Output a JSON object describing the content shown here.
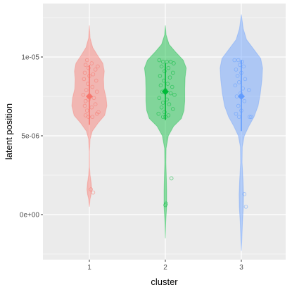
{
  "chart_data": {
    "type": "violin",
    "xlabel": "cluster",
    "ylabel": "latent position",
    "categories": [
      "1",
      "2",
      "3"
    ],
    "ylim": [
      -2.6e-06,
      1.27e-05
    ],
    "yticks": [
      0,
      5e-06,
      1e-05
    ],
    "ytick_labels": [
      "0e+00",
      "5e-06",
      "1e-05"
    ],
    "grid": true,
    "legend": "none",
    "colors": [
      "#F8766D",
      "#00BA38",
      "#619CFF"
    ],
    "panel_background": "#EBEBEB",
    "series": [
      {
        "category": "1",
        "mean": 7.5e-06,
        "range": [
          5.7e-06,
          9.5e-06
        ],
        "points": [
          [
            0.97,
            9.8e-06
          ],
          [
            1.03,
            9.6e-06
          ],
          [
            0.95,
            9.5e-06
          ],
          [
            1.11,
            9.4e-06
          ],
          [
            0.99,
            9.3e-06
          ],
          [
            1.08,
            9.2e-06
          ],
          [
            0.94,
            9e-06
          ],
          [
            1.05,
            8.9e-06
          ],
          [
            1.0,
            8.8e-06
          ],
          [
            0.93,
            8.6e-06
          ],
          [
            1.09,
            8.5e-06
          ],
          [
            0.98,
            8.3e-06
          ],
          [
            1.04,
            8.1e-06
          ],
          [
            0.96,
            7.9e-06
          ],
          [
            1.1,
            7.8e-06
          ],
          [
            0.92,
            7.6e-06
          ],
          [
            1.06,
            7.4e-06
          ],
          [
            0.99,
            7.3e-06
          ],
          [
            0.95,
            7.2e-06
          ],
          [
            1.08,
            7e-06
          ],
          [
            0.94,
            6.9e-06
          ],
          [
            1.03,
            6.8e-06
          ],
          [
            0.97,
            6.6e-06
          ],
          [
            1.12,
            6.5e-06
          ],
          [
            1.1,
            6.4e-06
          ],
          [
            0.95,
            6.3e-06
          ],
          [
            0.99,
            6.2e-06
          ],
          [
            1.04,
            6.2e-06
          ],
          [
            1.02,
            1.6e-06
          ],
          [
            1.05,
            1.4e-06
          ]
        ]
      },
      {
        "category": "2",
        "mean": 7.8e-06,
        "range": [
          6e-06,
          9.6e-06
        ],
        "points": [
          [
            0.92,
            9.8e-06
          ],
          [
            0.97,
            9.7e-06
          ],
          [
            1.02,
            9.7e-06
          ],
          [
            1.07,
            9.7e-06
          ],
          [
            1.11,
            9.6e-06
          ],
          [
            0.95,
            9.4e-06
          ],
          [
            1.04,
            9.3e-06
          ],
          [
            0.99,
            9.1e-06
          ],
          [
            1.1,
            9e-06
          ],
          [
            0.93,
            8.8e-06
          ],
          [
            1.06,
            8.7e-06
          ],
          [
            0.98,
            8.5e-06
          ],
          [
            1.03,
            8.3e-06
          ],
          [
            0.94,
            8.2e-06
          ],
          [
            1.09,
            8.1e-06
          ],
          [
            1.0,
            7.9e-06
          ],
          [
            0.96,
            7.8e-06
          ],
          [
            1.07,
            7.7e-06
          ],
          [
            1.12,
            7.6e-06
          ],
          [
            0.92,
            7.4e-06
          ],
          [
            1.02,
            7.3e-06
          ],
          [
            0.97,
            7.1e-06
          ],
          [
            1.05,
            7e-06
          ],
          [
            0.95,
            6.8e-06
          ],
          [
            1.1,
            6.7e-06
          ],
          [
            0.99,
            6.5e-06
          ],
          [
            0.91,
            6.4e-06
          ],
          [
            1.04,
            6.3e-06
          ],
          [
            0.97,
            6.2e-06
          ],
          [
            1.0,
            6.2e-06
          ],
          [
            1.08,
            2.3e-06
          ],
          [
            1.01,
            7e-07
          ],
          [
            1.0,
            6e-07
          ]
        ]
      },
      {
        "category": "3",
        "mean": 7.5e-06,
        "range": [
          5.3e-06,
          9.8e-06
        ],
        "points": [
          [
            0.91,
            9.8e-06
          ],
          [
            0.96,
            9.8e-06
          ],
          [
            1.01,
            9.7e-06
          ],
          [
            0.98,
            9.5e-06
          ],
          [
            1.03,
            9.4e-06
          ],
          [
            0.93,
            9.2e-06
          ],
          [
            1.0,
            9e-06
          ],
          [
            0.95,
            8.8e-06
          ],
          [
            1.05,
            8.6e-06
          ],
          [
            0.97,
            8.4e-06
          ],
          [
            0.92,
            8.2e-06
          ],
          [
            1.02,
            8e-06
          ],
          [
            1.1,
            7.9e-06
          ],
          [
            0.99,
            7.7e-06
          ],
          [
            0.94,
            7.5e-06
          ],
          [
            1.04,
            7.2e-06
          ],
          [
            0.96,
            6.9e-06
          ],
          [
            1.0,
            6.6e-06
          ],
          [
            0.93,
            6.4e-06
          ],
          [
            0.97,
            6.2e-06
          ],
          [
            1.11,
            6.2e-06
          ],
          [
            1.13,
            6.2e-06
          ],
          [
            1.04,
            1.3e-06
          ],
          [
            1.06,
            5e-07
          ]
        ]
      }
    ],
    "density": [
      {
        "category": "1",
        "ymin": 5e-07,
        "ymax": 1.2e-05,
        "profile": [
          [
            5e-07,
            0.0
          ],
          [
            1e-06,
            0.02
          ],
          [
            1.3e-06,
            0.05
          ],
          [
            1.6e-06,
            0.065
          ],
          [
            2e-06,
            0.05
          ],
          [
            2.5e-06,
            0.02
          ],
          [
            3e-06,
            0.005
          ],
          [
            4e-06,
            0.004
          ],
          [
            4.8e-06,
            0.02
          ],
          [
            5.3e-06,
            0.08
          ],
          [
            5.8e-06,
            0.23
          ],
          [
            6.3e-06,
            0.41
          ],
          [
            6.9e-06,
            0.47
          ],
          [
            7.4e-06,
            0.45
          ],
          [
            8e-06,
            0.39
          ],
          [
            8.6e-06,
            0.38
          ],
          [
            9.1e-06,
            0.4
          ],
          [
            9.6e-06,
            0.36
          ],
          [
            1.01e-05,
            0.22
          ],
          [
            1.06e-05,
            0.09
          ],
          [
            1.12e-05,
            0.02
          ],
          [
            1.2e-05,
            0.0
          ]
        ]
      },
      {
        "category": "2",
        "ymin": -1.5e-06,
        "ymax": 1.2e-05,
        "profile": [
          [
            -1.5e-06,
            0.0
          ],
          [
            -5e-07,
            0.01
          ],
          [
            5e-07,
            0.035
          ],
          [
            1.5e-06,
            0.035
          ],
          [
            2.5e-06,
            0.025
          ],
          [
            3.3e-06,
            0.015
          ],
          [
            4.2e-06,
            0.02
          ],
          [
            5e-06,
            0.08
          ],
          [
            5.6e-06,
            0.22
          ],
          [
            6.1e-06,
            0.43
          ],
          [
            6.6e-06,
            0.5
          ],
          [
            7.2e-06,
            0.52
          ],
          [
            8e-06,
            0.52
          ],
          [
            8.7e-06,
            0.53
          ],
          [
            9.3e-06,
            0.56
          ],
          [
            9.8e-06,
            0.48
          ],
          [
            1.03e-05,
            0.28
          ],
          [
            1.08e-05,
            0.1
          ],
          [
            1.14e-05,
            0.02
          ],
          [
            1.2e-05,
            0.0
          ]
        ]
      },
      {
        "category": "3",
        "ymin": -2.3e-06,
        "ymax": 1.27e-05,
        "profile": [
          [
            -2.3e-06,
            0.0
          ],
          [
            -1.5e-06,
            0.015
          ],
          [
            -5e-07,
            0.03
          ],
          [
            5e-07,
            0.055
          ],
          [
            1.3e-06,
            0.06
          ],
          [
            2.2e-06,
            0.045
          ],
          [
            3.3e-06,
            0.02
          ],
          [
            4.3e-06,
            0.025
          ],
          [
            5e-06,
            0.08
          ],
          [
            5.6e-06,
            0.2
          ],
          [
            6.2e-06,
            0.34
          ],
          [
            6.9e-06,
            0.45
          ],
          [
            7.7e-06,
            0.51
          ],
          [
            8.5e-06,
            0.55
          ],
          [
            9.3e-06,
            0.57
          ],
          [
            9.9e-06,
            0.52
          ],
          [
            1.05e-05,
            0.33
          ],
          [
            1.11e-05,
            0.14
          ],
          [
            1.18e-05,
            0.05
          ],
          [
            1.27e-05,
            0.0
          ]
        ]
      }
    ]
  }
}
